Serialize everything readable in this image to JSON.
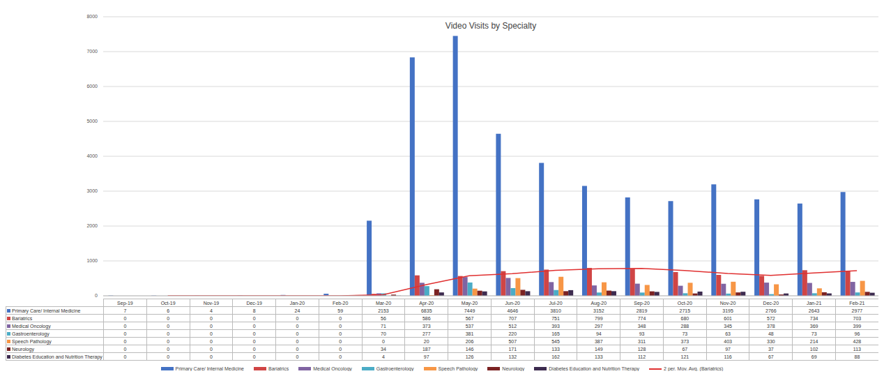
{
  "chart_data": {
    "type": "bar",
    "title": "Video Visits by Specialty",
    "categories": [
      "Sep-19",
      "Oct-19",
      "Nov-19",
      "Dec-19",
      "Jan-20",
      "Feb-20",
      "Mar-20",
      "Apr-20",
      "May-20",
      "Jun-20",
      "Jul-20",
      "Aug-20",
      "Sep-20",
      "Oct-20",
      "Nov-20",
      "Dec-20",
      "Jan-21",
      "Feb-21"
    ],
    "ylim": [
      0,
      8000
    ],
    "yticks": [
      0,
      1000,
      2000,
      3000,
      4000,
      5000,
      6000,
      7000,
      8000
    ],
    "grid": true,
    "legend": "bottom",
    "tick_labels": "y",
    "series": [
      {
        "name": "Primary Care/ Internal Medicine",
        "color": "#4472c4",
        "values": [
          7,
          6,
          4,
          8,
          24,
          59,
          2153,
          6835,
          7449,
          4646,
          3810,
          3152,
          2819,
          2715,
          3195,
          2766,
          2643,
          2977
        ]
      },
      {
        "name": "Bariatrics",
        "color": "#d04545",
        "values": [
          0,
          0,
          0,
          0,
          0,
          0,
          56,
          586,
          567,
          707,
          751,
          799,
          774,
          680,
          601,
          572,
          734,
          703
        ]
      },
      {
        "name": "Medical Oncology",
        "color": "#8064a2",
        "values": [
          0,
          0,
          0,
          0,
          0,
          0,
          71,
          373,
          537,
          512,
          393,
          297,
          348,
          288,
          345,
          378,
          369,
          399
        ]
      },
      {
        "name": "Gastroenterology",
        "color": "#4bacc6",
        "values": [
          0,
          0,
          0,
          0,
          0,
          0,
          70,
          277,
          381,
          220,
          165,
          94,
          93,
          73,
          63,
          48,
          73,
          96
        ]
      },
      {
        "name": "Speech Pathology",
        "color": "#f79646",
        "values": [
          0,
          0,
          0,
          0,
          0,
          0,
          0,
          20,
          206,
          507,
          545,
          387,
          311,
          373,
          403,
          330,
          214,
          428
        ]
      },
      {
        "name": "Neurology",
        "color": "#7b2222",
        "values": [
          0,
          0,
          0,
          0,
          0,
          0,
          34,
          187,
          146,
          171,
          133,
          149,
          128,
          67,
          97,
          37,
          102,
          113
        ]
      },
      {
        "name": "Diabetes Education and Nutrition Therapy",
        "color": "#3d2b4f",
        "values": [
          0,
          0,
          0,
          0,
          0,
          0,
          4,
          97,
          126,
          132,
          162,
          133,
          112,
          121,
          116,
          67,
          69,
          88
        ]
      },
      {
        "name": "2 per. Mov. Avg. (Bariatrics)",
        "color": "#e03030",
        "type": "line",
        "values": [
          null,
          0,
          0,
          0,
          0,
          0,
          28,
          321,
          576.5,
          637,
          729,
          775,
          786.5,
          727,
          640.5,
          586.5,
          653,
          718.5
        ]
      }
    ]
  }
}
